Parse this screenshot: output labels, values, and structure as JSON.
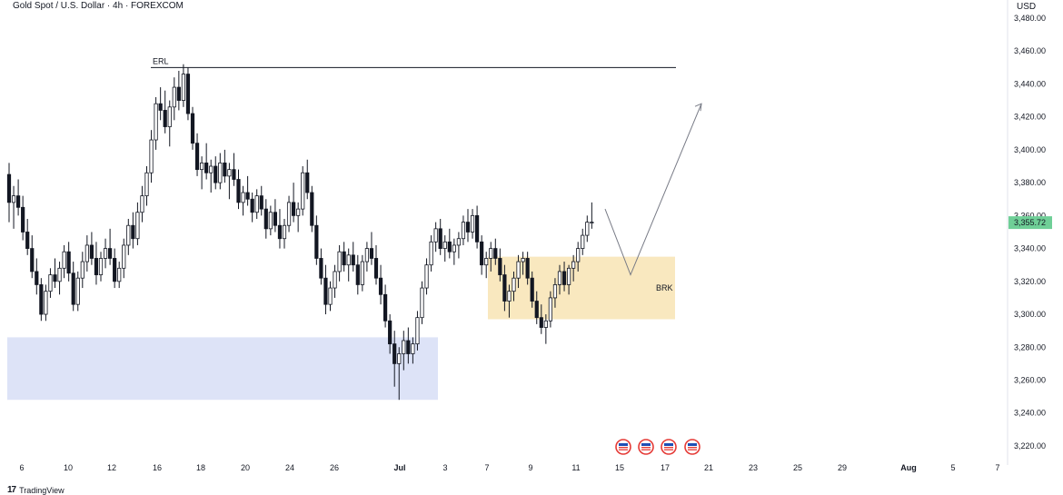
{
  "chart_data": {
    "type": "candlestick",
    "title": "Gold Spot / U.S. Dollar · 4h · FOREXCOM",
    "currency": "USD",
    "ylim": [
      3215,
      3480
    ],
    "y_ticks": [
      "3,220.00",
      "3,240.00",
      "3,260.00",
      "3,280.00",
      "3,300.00",
      "3,320.00",
      "3,340.00",
      "3,360.00",
      "3,380.00",
      "3,400.00",
      "3,420.00",
      "3,440.00",
      "3,460.00",
      "3,480.00"
    ],
    "x_ticks": [
      "6",
      "10",
      "12",
      "16",
      "18",
      "20",
      "24",
      "26",
      "Jul",
      "3",
      "7",
      "9",
      "11",
      "15",
      "17",
      "21",
      "23",
      "25",
      "29",
      "Aug",
      "5",
      "7"
    ],
    "last_price": "3,355.72",
    "last_price_color": "#6fcf97",
    "candle_up_color": "#ffffff",
    "candle_down_color": "#131722",
    "candles": [
      [
        3385,
        3392,
        3356,
        3368
      ],
      [
        3368,
        3378,
        3352,
        3372
      ],
      [
        3372,
        3382,
        3360,
        3365
      ],
      [
        3365,
        3372,
        3345,
        3350
      ],
      [
        3350,
        3358,
        3336,
        3340
      ],
      [
        3340,
        3348,
        3322,
        3326
      ],
      [
        3326,
        3334,
        3312,
        3318
      ],
      [
        3318,
        3322,
        3296,
        3300
      ],
      [
        3300,
        3318,
        3296,
        3314
      ],
      [
        3314,
        3328,
        3310,
        3324
      ],
      [
        3324,
        3334,
        3316,
        3320
      ],
      [
        3320,
        3332,
        3312,
        3328
      ],
      [
        3328,
        3342,
        3322,
        3338
      ],
      [
        3338,
        3344,
        3320,
        3325
      ],
      [
        3325,
        3332,
        3302,
        3306
      ],
      [
        3306,
        3326,
        3302,
        3322
      ],
      [
        3322,
        3338,
        3316,
        3332
      ],
      [
        3332,
        3348,
        3326,
        3342
      ],
      [
        3342,
        3350,
        3330,
        3334
      ],
      [
        3334,
        3344,
        3318,
        3324
      ],
      [
        3324,
        3338,
        3320,
        3334
      ],
      [
        3334,
        3346,
        3328,
        3340
      ],
      [
        3340,
        3352,
        3330,
        3334
      ],
      [
        3334,
        3340,
        3316,
        3320
      ],
      [
        3320,
        3332,
        3316,
        3328
      ],
      [
        3328,
        3346,
        3322,
        3342
      ],
      [
        3342,
        3358,
        3336,
        3354
      ],
      [
        3354,
        3362,
        3340,
        3346
      ],
      [
        3346,
        3368,
        3342,
        3362
      ],
      [
        3362,
        3378,
        3356,
        3372
      ],
      [
        3372,
        3390,
        3366,
        3386
      ],
      [
        3386,
        3412,
        3380,
        3406
      ],
      [
        3406,
        3432,
        3400,
        3428
      ],
      [
        3428,
        3438,
        3418,
        3424
      ],
      [
        3424,
        3436,
        3410,
        3414
      ],
      [
        3414,
        3430,
        3402,
        3426
      ],
      [
        3426,
        3444,
        3418,
        3438
      ],
      [
        3438,
        3448,
        3424,
        3430
      ],
      [
        3430,
        3452,
        3426,
        3446
      ],
      [
        3446,
        3450,
        3418,
        3422
      ],
      [
        3422,
        3426,
        3400,
        3404
      ],
      [
        3404,
        3410,
        3384,
        3388
      ],
      [
        3388,
        3396,
        3376,
        3392
      ],
      [
        3392,
        3404,
        3382,
        3386
      ],
      [
        3386,
        3394,
        3374,
        3390
      ],
      [
        3390,
        3396,
        3376,
        3380
      ],
      [
        3380,
        3398,
        3376,
        3392
      ],
      [
        3392,
        3400,
        3380,
        3384
      ],
      [
        3384,
        3392,
        3370,
        3388
      ],
      [
        3388,
        3398,
        3378,
        3382
      ],
      [
        3382,
        3388,
        3364,
        3368
      ],
      [
        3368,
        3378,
        3360,
        3374
      ],
      [
        3374,
        3384,
        3366,
        3370
      ],
      [
        3370,
        3374,
        3356,
        3362
      ],
      [
        3362,
        3376,
        3358,
        3372
      ],
      [
        3372,
        3378,
        3360,
        3364
      ],
      [
        3364,
        3370,
        3346,
        3352
      ],
      [
        3352,
        3366,
        3348,
        3362
      ],
      [
        3362,
        3370,
        3350,
        3354
      ],
      [
        3354,
        3364,
        3340,
        3346
      ],
      [
        3346,
        3358,
        3340,
        3354
      ],
      [
        3354,
        3372,
        3350,
        3368
      ],
      [
        3368,
        3380,
        3356,
        3360
      ],
      [
        3360,
        3368,
        3350,
        3364
      ],
      [
        3364,
        3390,
        3360,
        3386
      ],
      [
        3386,
        3394,
        3370,
        3374
      ],
      [
        3374,
        3378,
        3350,
        3354
      ],
      [
        3354,
        3360,
        3330,
        3334
      ],
      [
        3334,
        3340,
        3318,
        3322
      ],
      [
        3322,
        3330,
        3300,
        3306
      ],
      [
        3306,
        3320,
        3302,
        3316
      ],
      [
        3316,
        3330,
        3310,
        3326
      ],
      [
        3326,
        3342,
        3320,
        3338
      ],
      [
        3338,
        3344,
        3326,
        3330
      ],
      [
        3330,
        3340,
        3320,
        3336
      ],
      [
        3336,
        3344,
        3326,
        3330
      ],
      [
        3330,
        3336,
        3312,
        3318
      ],
      [
        3318,
        3336,
        3314,
        3332
      ],
      [
        3332,
        3344,
        3326,
        3340
      ],
      [
        3340,
        3350,
        3330,
        3334
      ],
      [
        3334,
        3342,
        3318,
        3322
      ],
      [
        3322,
        3330,
        3306,
        3312
      ],
      [
        3312,
        3318,
        3292,
        3296
      ],
      [
        3296,
        3300,
        3276,
        3282
      ],
      [
        3282,
        3290,
        3256,
        3270
      ],
      [
        3270,
        3280,
        3248,
        3276
      ],
      [
        3276,
        3290,
        3266,
        3284
      ],
      [
        3284,
        3292,
        3270,
        3276
      ],
      [
        3276,
        3286,
        3270,
        3282
      ],
      [
        3282,
        3302,
        3278,
        3298
      ],
      [
        3298,
        3320,
        3294,
        3316
      ],
      [
        3316,
        3334,
        3312,
        3330
      ],
      [
        3330,
        3348,
        3326,
        3344
      ],
      [
        3344,
        3356,
        3338,
        3352
      ],
      [
        3352,
        3358,
        3336,
        3340
      ],
      [
        3340,
        3348,
        3332,
        3344
      ],
      [
        3344,
        3352,
        3334,
        3338
      ],
      [
        3338,
        3346,
        3330,
        3342
      ],
      [
        3342,
        3350,
        3334,
        3346
      ],
      [
        3346,
        3360,
        3342,
        3356
      ],
      [
        3356,
        3364,
        3344,
        3350
      ],
      [
        3350,
        3364,
        3346,
        3360
      ],
      [
        3360,
        3366,
        3340,
        3344
      ],
      [
        3344,
        3348,
        3324,
        3330
      ],
      [
        3330,
        3338,
        3322,
        3334
      ],
      [
        3334,
        3344,
        3326,
        3340
      ],
      [
        3340,
        3346,
        3330,
        3334
      ],
      [
        3334,
        3340,
        3320,
        3324
      ],
      [
        3324,
        3330,
        3302,
        3308
      ],
      [
        3308,
        3318,
        3298,
        3314
      ],
      [
        3314,
        3326,
        3308,
        3322
      ],
      [
        3322,
        3336,
        3316,
        3332
      ],
      [
        3332,
        3338,
        3324,
        3334
      ],
      [
        3334,
        3338,
        3318,
        3322
      ],
      [
        3322,
        3326,
        3304,
        3308
      ],
      [
        3308,
        3314,
        3294,
        3298
      ],
      [
        3298,
        3306,
        3288,
        3292
      ],
      [
        3292,
        3300,
        3282,
        3296
      ],
      [
        3296,
        3314,
        3292,
        3310
      ],
      [
        3310,
        3322,
        3304,
        3318
      ],
      [
        3318,
        3330,
        3312,
        3326
      ],
      [
        3326,
        3332,
        3314,
        3318
      ],
      [
        3318,
        3330,
        3312,
        3328
      ],
      [
        3328,
        3336,
        3320,
        3332
      ],
      [
        3332,
        3344,
        3326,
        3340
      ],
      [
        3340,
        3352,
        3336,
        3348
      ],
      [
        3348,
        3360,
        3344,
        3356
      ],
      [
        3356,
        3368,
        3352,
        3356
      ]
    ],
    "zones": [
      {
        "label": "",
        "y_from": 3248,
        "y_to": 3286,
        "color": "#dde3f7"
      },
      {
        "label": "BRK",
        "y_from": 3297,
        "y_to": 3335,
        "color": "#f9e8bf"
      }
    ],
    "levels": [
      {
        "label": "ERL",
        "price": 3450
      }
    ],
    "projection_path": [
      [
        3365,
        "down"
      ],
      [
        3324,
        "pivot"
      ],
      [
        3428,
        "target"
      ]
    ],
    "event_icons": 4
  },
  "footer": {
    "brand": "TradingView"
  }
}
